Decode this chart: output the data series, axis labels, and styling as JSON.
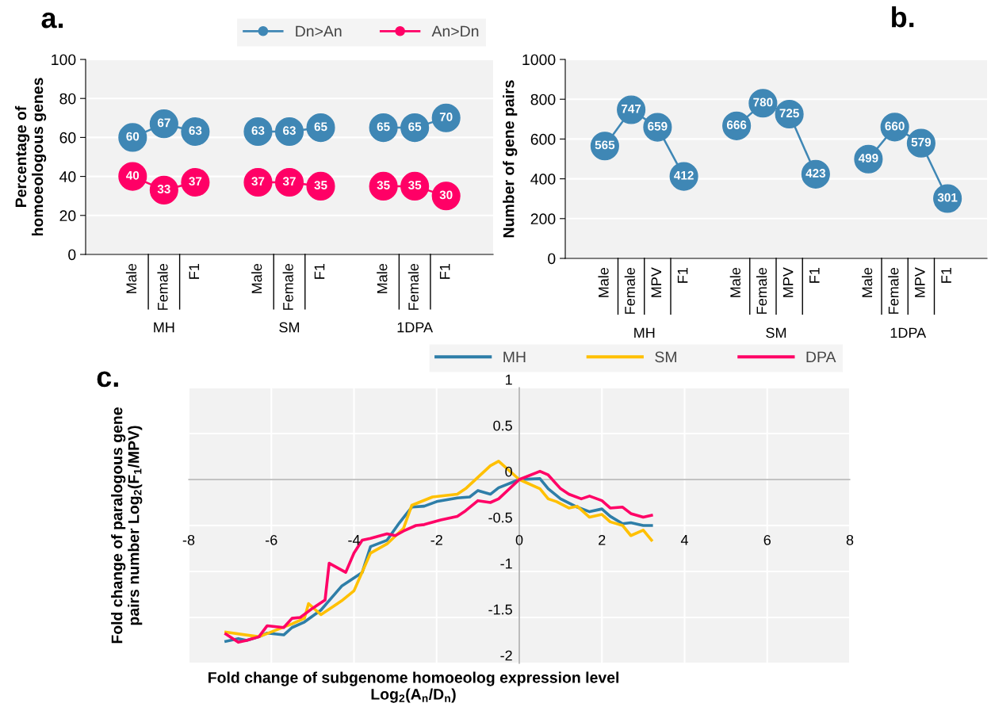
{
  "chart_data": [
    {
      "type": "line",
      "title": "a.",
      "ylabel": "Percentage of\nhomoeologous genes",
      "categories": [
        null,
        "Male",
        "Female",
        "F1",
        null,
        "Male",
        "Female",
        "F1",
        null,
        "Male",
        "Female",
        "F1",
        null
      ],
      "series": [
        {
          "name": "Dn>An",
          "color": "#3f87b5",
          "values": [
            null,
            60,
            67,
            63,
            null,
            63,
            63,
            65,
            null,
            65,
            65,
            70,
            null
          ]
        },
        {
          "name": "An>Dn",
          "color": "#ff0066",
          "values": [
            null,
            40,
            33,
            37,
            null,
            37,
            37,
            35,
            null,
            35,
            35,
            30,
            null
          ]
        }
      ],
      "ylim": [
        0,
        100
      ],
      "yticks": [
        0,
        20,
        40,
        60,
        80,
        100
      ],
      "grid": "y",
      "legend": "top right",
      "marker": "circle",
      "data_labels": true,
      "annotations": [
        "MH",
        "SM",
        "1DPA"
      ]
    },
    {
      "type": "line",
      "title": "b.",
      "ylabel": "Number of gene pairs",
      "categories": [
        null,
        "Male",
        "Female",
        "MPV",
        "F1",
        null,
        "Male",
        "Female",
        "MPV",
        "F1",
        null,
        "Male",
        "Female",
        "MPV",
        "F1",
        null
      ],
      "series": [
        {
          "color": "#3f87b5",
          "values": [
            null,
            565,
            747,
            659,
            412,
            null,
            666,
            780,
            725,
            423,
            null,
            499,
            660,
            579,
            301,
            null
          ]
        }
      ],
      "ylim": [
        0,
        1000
      ],
      "yticks": [
        0,
        200,
        400,
        600,
        800,
        1000
      ],
      "grid": "y",
      "marker": "circle",
      "data_labels": true,
      "annotations": [
        "MH",
        "SM",
        "1DPA"
      ]
    },
    {
      "type": "line",
      "title": "c.",
      "xlabel": "Fold change of subgenome homoeolog expression level\nLog$_{2}$(A$_{n}$/D$_{n}$)",
      "ylabel": "Fold change of paralogous gene\npairs number Log$_{2}$(F$_{1}$/MPV)",
      "series": [
        {
          "name": "MH",
          "color": "#2e7ea8",
          "x": [
            -7.1,
            -6.8,
            -6.6,
            -6.3,
            -6.1,
            -5.7,
            -5.5,
            -5.2,
            -4.8,
            -4.3,
            -3.8,
            -3.6,
            -3.2,
            -2.9,
            -2.6,
            -2.3,
            -2,
            -1.5,
            -1.2,
            -1.0,
            -0.7,
            -0.5,
            0,
            0.5,
            0.7,
            1.0,
            1.4,
            1.7,
            2.0,
            2.2,
            2.5,
            2.7,
            3.0,
            3.2
          ],
          "values": [
            -1.76,
            -1.73,
            -1.75,
            -1.71,
            -1.67,
            -1.69,
            -1.61,
            -1.55,
            -1.42,
            -1.16,
            -1.01,
            -0.73,
            -0.66,
            -0.47,
            -0.3,
            -0.29,
            -0.24,
            -0.2,
            -0.19,
            -0.12,
            -0.16,
            -0.09,
            0,
            0.01,
            -0.1,
            -0.21,
            -0.3,
            -0.35,
            -0.32,
            -0.4,
            -0.48,
            -0.47,
            -0.5,
            -0.5
          ]
        },
        {
          "name": "SM",
          "color": "#ffc000",
          "x": [
            -7.1,
            -6.3,
            -5.5,
            -5.2,
            -5.1,
            -4.8,
            -4.3,
            -4.0,
            -3.6,
            -3.2,
            -2.8,
            -2.6,
            -2.1,
            -1.5,
            -1.3,
            -0.7,
            -0.5,
            0,
            0.5,
            0.7,
            0.9,
            1.2,
            1.4,
            1.7,
            2.0,
            2.2,
            2.5,
            2.7,
            3.0,
            3.2
          ],
          "values": [
            -1.66,
            -1.71,
            -1.57,
            -1.51,
            -1.35,
            -1.47,
            -1.32,
            -1.21,
            -0.8,
            -0.7,
            -0.53,
            -0.28,
            -0.19,
            -0.16,
            -0.1,
            0.15,
            0.2,
            0,
            -0.1,
            -0.21,
            -0.24,
            -0.31,
            -0.29,
            -0.41,
            -0.38,
            -0.46,
            -0.5,
            -0.61,
            -0.55,
            -0.66
          ]
        },
        {
          "name": "DPA",
          "color": "#ff0066",
          "x": [
            -7.1,
            -6.8,
            -6.6,
            -6.3,
            -6.1,
            -5.7,
            -5.5,
            -5.3,
            -5.0,
            -4.7,
            -4.6,
            -4.2,
            -4.0,
            -3.8,
            -3.6,
            -3.2,
            -3.0,
            -2.8,
            -2.5,
            -2.3,
            -1.9,
            -1.5,
            -1.3,
            -1.0,
            -0.7,
            -0.5,
            0,
            0.5,
            0.7,
            1.0,
            1.2,
            1.5,
            1.7,
            2.0,
            2.2,
            2.5,
            2.7,
            3.0,
            3.2
          ],
          "values": [
            -1.68,
            -1.77,
            -1.75,
            -1.71,
            -1.59,
            -1.61,
            -1.51,
            -1.5,
            -1.4,
            -1.31,
            -0.91,
            -1.01,
            -0.8,
            -0.66,
            -0.64,
            -0.59,
            -0.61,
            -0.56,
            -0.5,
            -0.49,
            -0.44,
            -0.4,
            -0.34,
            -0.23,
            -0.25,
            -0.21,
            0,
            0.09,
            0.05,
            -0.1,
            -0.16,
            -0.21,
            -0.18,
            -0.23,
            -0.31,
            -0.3,
            -0.37,
            -0.41,
            -0.39
          ]
        }
      ],
      "xlim": [
        -8,
        8
      ],
      "xticks": [
        -8,
        -6,
        -4,
        -2,
        0,
        2,
        4,
        6,
        8
      ],
      "ylim": [
        -2,
        1
      ],
      "yticks": [
        -2,
        -1.5,
        -1,
        -0.5,
        0,
        0.5,
        1
      ],
      "grid": true,
      "legend": "top right",
      "line_style": "solid"
    }
  ]
}
